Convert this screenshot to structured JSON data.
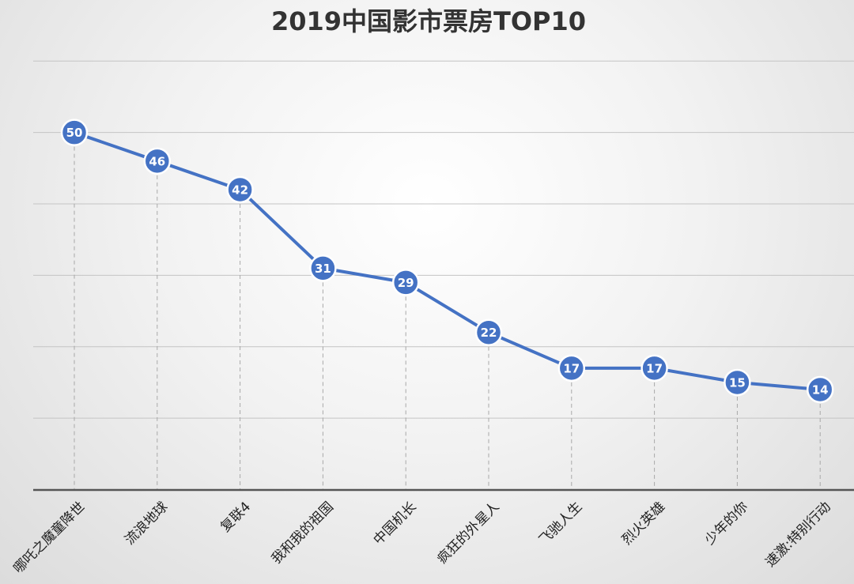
{
  "chart_data": {
    "type": "line",
    "title": "2019中国影市票房TOP10",
    "categories": [
      "哪吒之魔童降世",
      "流浪地球",
      "复联4",
      "我和我的祖国",
      "中国机长",
      "疯狂的外星人",
      "飞驰人生",
      "烈火英雄",
      "少年的你",
      "速激:特别行动"
    ],
    "series": [
      {
        "values": [
          50,
          46,
          42,
          31,
          29,
          22,
          17,
          17,
          15,
          14
        ]
      }
    ],
    "data_labels": [
      "50",
      "46",
      "42",
      "31",
      "29",
      "22",
      "17",
      "17",
      "15",
      "14"
    ],
    "ylim": [
      0,
      60
    ],
    "y_gridlines": [
      10,
      20,
      30,
      40,
      50,
      60
    ],
    "y_tick_labels_visible": false,
    "grid": true,
    "legend": "none",
    "colors": {
      "series": "#4472c4",
      "marker_outline": "#ffffff",
      "title": "#333333"
    }
  }
}
